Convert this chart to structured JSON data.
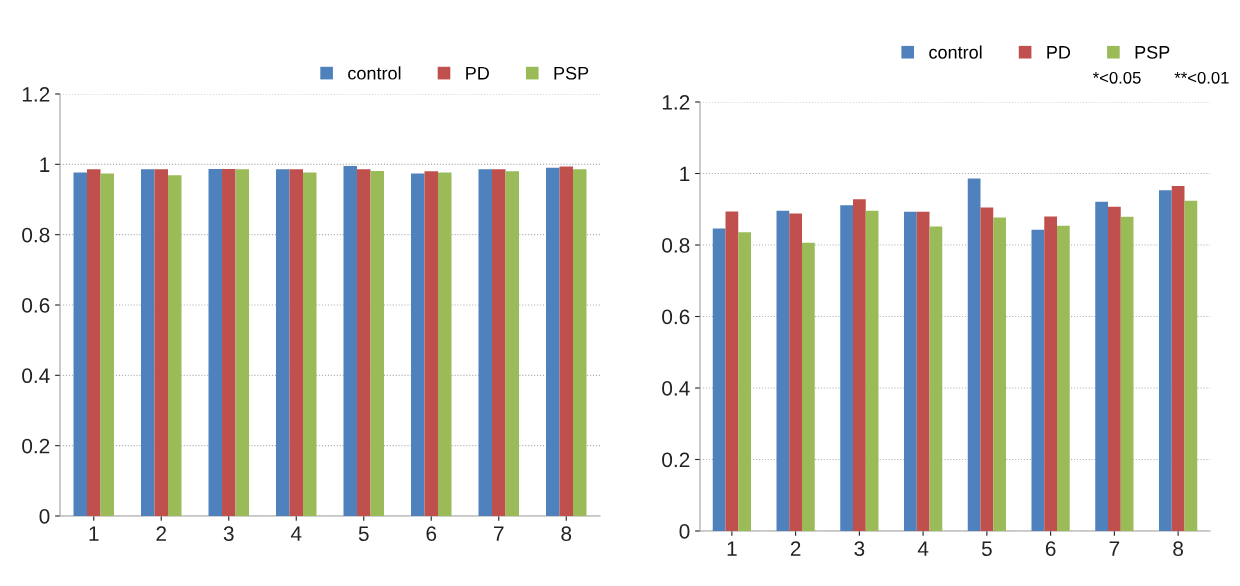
{
  "chart_data": [
    {
      "type": "bar",
      "categories": [
        "1",
        "2",
        "3",
        "4",
        "5",
        "6",
        "7",
        "8"
      ],
      "series": [
        {
          "name": "control",
          "color": "#4f81bd",
          "values": [
            0.977,
            0.986,
            0.987,
            0.986,
            0.995,
            0.974,
            0.986,
            0.99
          ]
        },
        {
          "name": "PD",
          "color": "#c0504d",
          "values": [
            0.986,
            0.986,
            0.987,
            0.986,
            0.986,
            0.98,
            0.986,
            0.994
          ]
        },
        {
          "name": "PSP",
          "color": "#9bbb59",
          "values": [
            0.974,
            0.969,
            0.986,
            0.977,
            0.981,
            0.977,
            0.98,
            0.986
          ]
        }
      ],
      "ylim": [
        0,
        1.2
      ],
      "yticks": [
        0,
        0.2,
        0.4,
        0.6,
        0.8,
        1,
        1.2
      ],
      "grid": "y",
      "legend": "top right"
    },
    {
      "type": "bar",
      "categories": [
        "1",
        "2",
        "3",
        "4",
        "5",
        "6",
        "7",
        "8"
      ],
      "series": [
        {
          "name": "control",
          "color": "#4f81bd",
          "values": [
            0.846,
            0.896,
            0.911,
            0.893,
            0.986,
            0.843,
            0.921,
            0.953
          ]
        },
        {
          "name": "PD",
          "color": "#c0504d",
          "values": [
            0.894,
            0.888,
            0.928,
            0.893,
            0.905,
            0.88,
            0.907,
            0.965
          ]
        },
        {
          "name": "PSP",
          "color": "#9bbb59",
          "values": [
            0.836,
            0.806,
            0.896,
            0.852,
            0.877,
            0.854,
            0.879,
            0.924
          ]
        }
      ],
      "ylim": [
        0,
        1.2
      ],
      "yticks": [
        0,
        0.2,
        0.4,
        0.6,
        0.8,
        1,
        1.2
      ],
      "grid": "y",
      "legend": "top right",
      "annotations": [
        "*<0.05",
        "**<0.01"
      ]
    }
  ]
}
